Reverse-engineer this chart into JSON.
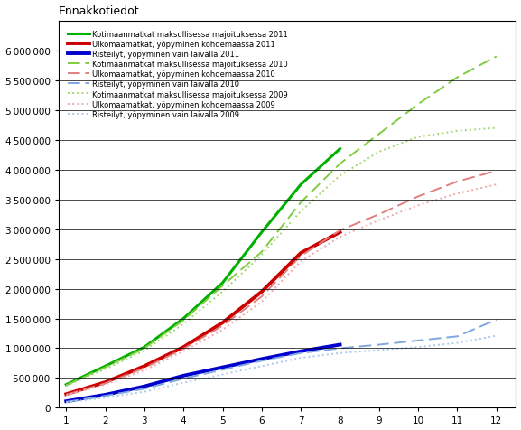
{
  "title": "Ennakkotiedot",
  "legend_entries": [
    "Kotimaanmatkat maksullisessa majoituksessa 2011",
    "Ulkomaamatkat, yöpyminen kohdemaassa 2011",
    "Risteilyt, yöpyminen vain laivalla 2011",
    "Kotimaanmatkat maksullisessa majoituksessa 2010",
    "Ulkomaamatkat, yöpyminen kohdemaassa 2010",
    "Risteilyt, yöpyminen vain laivalla 2010",
    "Kotimaanmatkat maksullisessa majoituksessa 2009",
    "Ulkomaamatkat, yöpyminen kohdemaassa 2009",
    "Risteilyt, yöpyminen vain laivalla 2009"
  ],
  "x": [
    1,
    2,
    3,
    4,
    5,
    6,
    7,
    8,
    9,
    10,
    11,
    12
  ],
  "series": {
    "kotimaa_2011": [
      390000,
      700000,
      1020000,
      1500000,
      2100000,
      2950000,
      3750000,
      4350000,
      null,
      null,
      null,
      null
    ],
    "ulkomaa_2011": [
      230000,
      430000,
      700000,
      1020000,
      1430000,
      1950000,
      2600000,
      2950000,
      null,
      null,
      null,
      null
    ],
    "risteilyt_2011": [
      110000,
      220000,
      360000,
      540000,
      680000,
      820000,
      950000,
      1060000,
      null,
      null,
      null,
      null
    ],
    "kotimaa_2010": [
      380000,
      680000,
      1000000,
      1470000,
      2050000,
      2620000,
      3450000,
      4100000,
      4600000,
      5100000,
      5550000,
      5900000
    ],
    "ulkomaa_2010": [
      220000,
      410000,
      670000,
      990000,
      1380000,
      1870000,
      2550000,
      2980000,
      3250000,
      3550000,
      3800000,
      3980000
    ],
    "risteilyt_2010": [
      100000,
      200000,
      320000,
      490000,
      640000,
      790000,
      920000,
      1000000,
      1060000,
      1130000,
      1200000,
      1480000
    ],
    "kotimaa_2009": [
      370000,
      650000,
      960000,
      1410000,
      1950000,
      2570000,
      3300000,
      3900000,
      4300000,
      4550000,
      4650000,
      4700000
    ],
    "ulkomaa_2009": [
      210000,
      390000,
      630000,
      950000,
      1310000,
      1780000,
      2460000,
      2870000,
      3150000,
      3400000,
      3600000,
      3750000
    ],
    "risteilyt_2009": [
      90000,
      170000,
      270000,
      420000,
      560000,
      700000,
      840000,
      920000,
      970000,
      1020000,
      1090000,
      1210000
    ]
  },
  "colors": {
    "green_2011": "#00b000",
    "red_2011": "#cc0000",
    "blue_2011": "#0000cc",
    "green_2010": "#80cc40",
    "red_2010": "#e08080",
    "blue_2010": "#80a8e0",
    "green_2009": "#a0d870",
    "red_2009": "#eeaaaa",
    "blue_2009": "#aacaee"
  },
  "ylim": [
    0,
    6500000
  ],
  "xlim": [
    0.8,
    12.5
  ],
  "yticks": [
    0,
    500000,
    1000000,
    1500000,
    2000000,
    2500000,
    3000000,
    3500000,
    4000000,
    4500000,
    5000000,
    5500000,
    6000000
  ],
  "xticks": [
    1,
    2,
    3,
    4,
    5,
    6,
    7,
    8,
    9,
    10,
    11,
    12
  ],
  "background_color": "#ffffff",
  "grid_color": "#000000"
}
